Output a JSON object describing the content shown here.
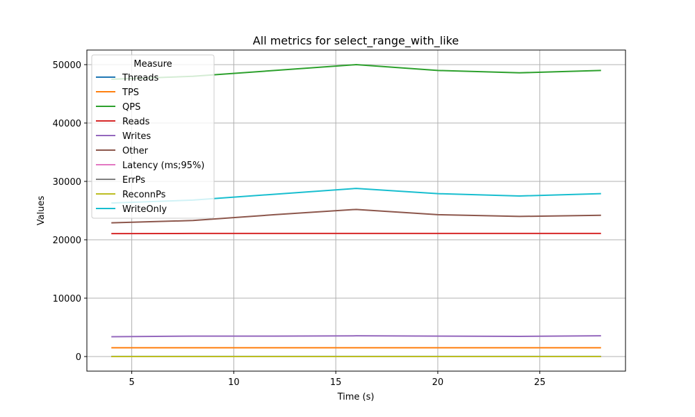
{
  "chart_data": {
    "type": "line",
    "title": "All metrics for select_range_with_like",
    "xlabel": "Time (s)",
    "ylabel": "Values",
    "xlim": [
      2.8,
      29.2
    ],
    "ylim": [
      -2500,
      52500
    ],
    "xticks": [
      5,
      10,
      15,
      20,
      25
    ],
    "yticks": [
      0,
      10000,
      20000,
      30000,
      40000,
      50000
    ],
    "grid": true,
    "legend": {
      "title": "Measure",
      "placement": "top-left"
    },
    "x": [
      4,
      8,
      12,
      16,
      20,
      24,
      28
    ],
    "series": [
      {
        "name": "Threads",
        "color": "#1f77b4",
        "values": [
          8,
          8,
          8,
          8,
          8,
          8,
          8
        ]
      },
      {
        "name": "TPS",
        "color": "#ff7f0e",
        "values": [
          1500,
          1505,
          1505,
          1505,
          1505,
          1505,
          1505
        ]
      },
      {
        "name": "QPS",
        "color": "#2ca02c",
        "values": [
          47500,
          48000,
          49000,
          50000,
          49000,
          48600,
          49000
        ]
      },
      {
        "name": "Reads",
        "color": "#d62728",
        "values": [
          21050,
          21080,
          21080,
          21080,
          21080,
          21080,
          21080
        ]
      },
      {
        "name": "Writes",
        "color": "#9467bd",
        "values": [
          3400,
          3500,
          3500,
          3550,
          3500,
          3450,
          3550
        ]
      },
      {
        "name": "Other",
        "color": "#8c564b",
        "values": [
          22900,
          23300,
          24300,
          25200,
          24300,
          24000,
          24200
        ]
      },
      {
        "name": "Latency (ms;95%)",
        "color": "#e377c2",
        "values": [
          3,
          3,
          3,
          3,
          3,
          3,
          3
        ]
      },
      {
        "name": "ErrPs",
        "color": "#7f7f7f",
        "values": [
          0,
          0,
          0,
          0,
          0,
          0,
          0
        ]
      },
      {
        "name": "ReconnPs",
        "color": "#bcbd22",
        "values": [
          0,
          0,
          0,
          0,
          0,
          0,
          0
        ]
      },
      {
        "name": "WriteOnly",
        "color": "#17becf",
        "values": [
          26300,
          26800,
          27800,
          28800,
          27900,
          27500,
          27900
        ]
      }
    ]
  }
}
